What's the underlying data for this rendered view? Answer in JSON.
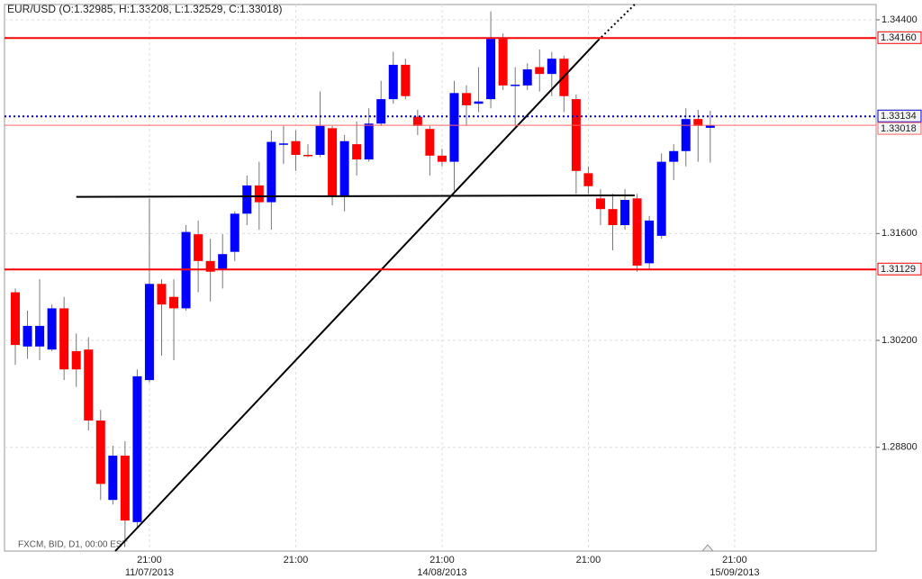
{
  "chart_data": {
    "type": "candlestick",
    "title": "EUR/USD (O:1.32985, H:1.33208, L:1.32529, C:1.33018)",
    "footer": "FXCM, BID, D1, 00:00 EST",
    "up_color": "#0000ff",
    "down_color": "#ff0000",
    "x": [
      0,
      1,
      2,
      3,
      4,
      5,
      6,
      7,
      8,
      9,
      10,
      11,
      12,
      13,
      14,
      15,
      16,
      17,
      18,
      19,
      20,
      21,
      22,
      23,
      24,
      25,
      26,
      27,
      28,
      29,
      30,
      31,
      32,
      33,
      34,
      35,
      36,
      37,
      38,
      39,
      40,
      41,
      42,
      43,
      44,
      45,
      46,
      47,
      48,
      49,
      50,
      51,
      52,
      53,
      54,
      55,
      56,
      57
    ],
    "open": [
      1.3083,
      1.3012,
      1.3012,
      1.3008,
      1.3062,
      1.3006,
      1.3008,
      1.2915,
      1.2811,
      1.2869,
      1.2782,
      1.2968,
      1.3094,
      1.3077,
      1.3062,
      1.3159,
      1.3124,
      1.3112,
      1.3136,
      1.3186,
      1.3223,
      1.3201,
      1.3277,
      1.3281,
      1.3263,
      1.3263,
      1.3298,
      1.3209,
      1.3277,
      1.3257,
      1.3304,
      1.3336,
      1.3381,
      1.3313,
      1.3297,
      1.3262,
      1.3254,
      1.3344,
      1.333,
      1.3336,
      1.3415,
      1.3354,
      1.3354,
      1.3378,
      1.3369,
      1.3389,
      1.3336,
      1.3239,
      1.3206,
      1.3192,
      1.3171,
      1.3206,
      1.3121,
      1.3157,
      1.3254,
      1.3268,
      1.331,
      1.32985
    ],
    "high": [
      1.3088,
      1.3059,
      1.31,
      1.3067,
      1.3077,
      1.3029,
      1.3024,
      1.2929,
      1.2882,
      1.2888,
      1.2982,
      1.3206,
      1.31,
      1.31,
      1.3171,
      1.3177,
      1.3153,
      1.3159,
      1.3189,
      1.3236,
      1.3254,
      1.3295,
      1.3301,
      1.3295,
      1.3277,
      1.3346,
      1.3301,
      1.3289,
      1.3307,
      1.3324,
      1.336,
      1.3398,
      1.3389,
      1.3322,
      1.3301,
      1.3271,
      1.336,
      1.3354,
      1.3378,
      1.3451,
      1.3422,
      1.3378,
      1.3383,
      1.3401,
      1.3398,
      1.3393,
      1.3342,
      1.3248,
      1.3218,
      1.3212,
      1.3218,
      1.3212,
      1.3183,
      1.3265,
      1.3277,
      1.3324,
      1.3322,
      1.33208
    ],
    "low": [
      1.2988,
      1.2996,
      1.2994,
      1.3006,
      1.2968,
      1.2959,
      1.2902,
      1.2811,
      1.2805,
      1.2758,
      1.2776,
      1.2965,
      1.3,
      1.2994,
      1.3059,
      1.3083,
      1.3071,
      1.3088,
      1.3124,
      1.3171,
      1.3165,
      1.3165,
      1.3251,
      1.3242,
      1.326,
      1.326,
      1.3197,
      1.3189,
      1.3236,
      1.3254,
      1.3301,
      1.333,
      1.3336,
      1.3289,
      1.3236,
      1.3248,
      1.3216,
      1.3301,
      1.3319,
      1.3324,
      1.3348,
      1.3301,
      1.3348,
      1.3346,
      1.334,
      1.3319,
      1.3212,
      1.3212,
      1.3171,
      1.3138,
      1.3165,
      1.311,
      1.3112,
      1.3153,
      1.323,
      1.3248,
      1.3254,
      1.32529
    ],
    "close": [
      1.3014,
      1.3039,
      1.3039,
      1.3062,
      1.2982,
      1.2982,
      1.2915,
      1.2832,
      1.2869,
      1.2784,
      1.2973,
      1.3094,
      1.3067,
      1.3062,
      1.3162,
      1.3124,
      1.311,
      1.3133,
      1.3186,
      1.3223,
      1.3201,
      1.328,
      1.3278,
      1.3263,
      1.3262,
      1.3301,
      1.3209,
      1.3281,
      1.3257,
      1.3304,
      1.3336,
      1.3381,
      1.334,
      1.3301,
      1.3262,
      1.3254,
      1.3344,
      1.3328,
      1.3333,
      1.3415,
      1.3354,
      1.3355,
      1.3375,
      1.3369,
      1.3389,
      1.334,
      1.3242,
      1.3222,
      1.3192,
      1.3171,
      1.3204,
      1.3118,
      1.3177,
      1.3254,
      1.3268,
      1.331,
      1.3301,
      1.33018
    ],
    "xlim": [
      -0.886,
      70.6
    ],
    "ylim": [
      1.2744,
      1.346
    ],
    "yticks": [
      {
        "value": 1.344,
        "label": "1.34400"
      },
      {
        "value": 1.316,
        "label": "1.31600"
      },
      {
        "value": 1.302,
        "label": "1.30200"
      },
      {
        "value": 1.288,
        "label": "1.28800"
      }
    ],
    "xticks": [
      {
        "value": 11,
        "label": "21:00"
      },
      {
        "value": 23,
        "label": "21:00"
      },
      {
        "value": 35,
        "label": "21:00"
      },
      {
        "value": 47,
        "label": "21:00"
      },
      {
        "value": 59,
        "label": "21:00"
      }
    ],
    "xdate_labels": [
      {
        "value": 11,
        "label": "11/07/2013"
      },
      {
        "value": 35,
        "label": "14/08/2013"
      },
      {
        "value": 59,
        "label": "15/09/2013"
      }
    ],
    "levels": [
      {
        "value": 1.3416,
        "label": "1.34160",
        "color": "#ff0000",
        "style": "solid"
      },
      {
        "value": 1.33134,
        "label": "1.33134",
        "color": "#0000cc",
        "style": "dotted"
      },
      {
        "value": 1.33018,
        "label": "1.33018",
        "color": "#ff6666",
        "style": "thin"
      },
      {
        "value": 1.31129,
        "label": "1.31129",
        "color": "#ff0000",
        "style": "solid"
      }
    ],
    "trendlines": [
      {
        "x": [
          5,
          50.8
        ],
        "y": [
          1.3208,
          1.321
        ],
        "color": "#000000",
        "style": "solid"
      },
      {
        "x": [
          8.2,
          47.8
        ],
        "y": [
          1.2744,
          1.3413
        ],
        "color": "#000000",
        "style": "solid"
      },
      {
        "x": [
          47.8,
          50.8
        ],
        "y": [
          1.3413,
          1.346
        ],
        "color": "#000000",
        "style": "dotted"
      }
    ],
    "grid": true
  }
}
